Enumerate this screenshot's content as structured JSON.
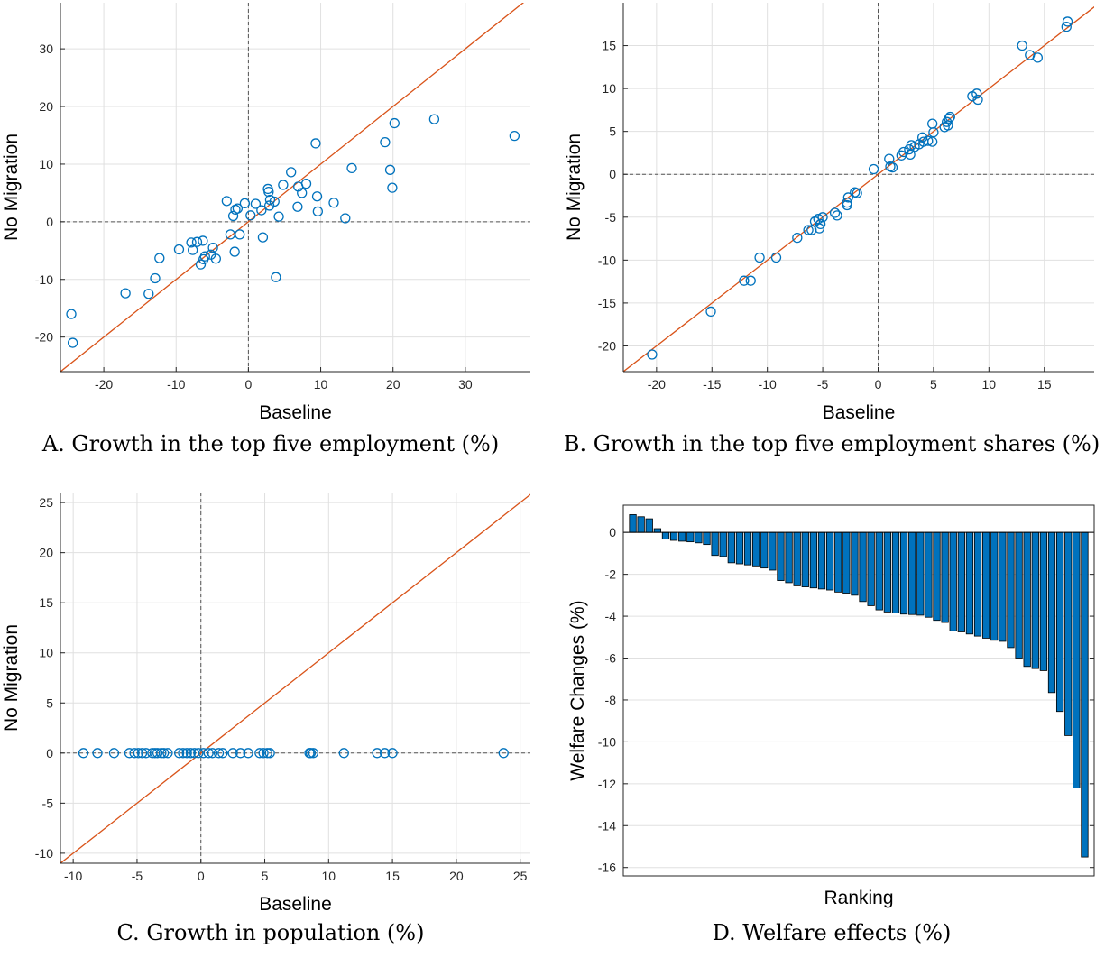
{
  "colors": {
    "marker": "#0072BD",
    "line": "#D95319",
    "bar": "#0072BD",
    "grid": "#e0e0e0",
    "axis": "#262626"
  },
  "chart_data": [
    {
      "id": "A",
      "type": "scatter",
      "caption": "A. Growth in the top five employment (%)",
      "xlabel": "Baseline",
      "ylabel": "No Migration",
      "xlim": [
        -26,
        39
      ],
      "ylim": [
        -26,
        38
      ],
      "xticks": [
        -20,
        -10,
        0,
        10,
        20,
        30
      ],
      "yticks": [
        -20,
        -10,
        0,
        10,
        20,
        30
      ],
      "grid": true,
      "reference_line": "y = x",
      "zero_lines": true,
      "points": [
        [
          -24.5,
          -16
        ],
        [
          -24.3,
          -21
        ],
        [
          -17,
          -12.4
        ],
        [
          -13.8,
          -12.5
        ],
        [
          -12.9,
          -9.8
        ],
        [
          -12.3,
          -6.3
        ],
        [
          -9.6,
          -4.8
        ],
        [
          -7.9,
          -3.6
        ],
        [
          -7.7,
          -4.9
        ],
        [
          -7.1,
          -3.5
        ],
        [
          -6.6,
          -7.4
        ],
        [
          -6.3,
          -3.3
        ],
        [
          -6.2,
          -6.5
        ],
        [
          -6,
          -6
        ],
        [
          -5.2,
          -5.7
        ],
        [
          -4.9,
          -4.5
        ],
        [
          -4.5,
          -6.4
        ],
        [
          -3,
          3.6
        ],
        [
          -2.5,
          -2.2
        ],
        [
          -2.1,
          1
        ],
        [
          -1.9,
          -5.2
        ],
        [
          -1.8,
          2.1
        ],
        [
          -1.5,
          2.3
        ],
        [
          -1.2,
          -2.2
        ],
        [
          -0.5,
          3.2
        ],
        [
          0.3,
          1.1
        ],
        [
          1,
          3.1
        ],
        [
          2,
          -2.7
        ],
        [
          1.8,
          2
        ],
        [
          2.7,
          5.7
        ],
        [
          2.8,
          5.2
        ],
        [
          2.9,
          2.8
        ],
        [
          3,
          3.8
        ],
        [
          3.6,
          3.5
        ],
        [
          3.8,
          -9.6
        ],
        [
          4.2,
          0.9
        ],
        [
          4.8,
          6.4
        ],
        [
          5.9,
          8.6
        ],
        [
          6.8,
          2.6
        ],
        [
          6.9,
          6.1
        ],
        [
          7.4,
          5
        ],
        [
          8,
          6.6
        ],
        [
          9.3,
          13.6
        ],
        [
          9.5,
          4.4
        ],
        [
          9.6,
          1.8
        ],
        [
          11.8,
          3.3
        ],
        [
          13.4,
          0.6
        ],
        [
          14.3,
          9.3
        ],
        [
          18.9,
          13.8
        ],
        [
          19.6,
          9
        ],
        [
          19.9,
          5.9
        ],
        [
          20.2,
          17.1
        ],
        [
          25.7,
          17.8
        ],
        [
          36.8,
          14.9
        ]
      ]
    },
    {
      "id": "B",
      "type": "scatter",
      "caption": "B. Growth in the top five employment shares (%)",
      "xlabel": "Baseline",
      "ylabel": "No Migration",
      "xlim": [
        -23,
        19.5
      ],
      "ylim": [
        -23,
        20
      ],
      "xticks": [
        -20,
        -15,
        -10,
        -5,
        0,
        5,
        10,
        15
      ],
      "yticks": [
        -20,
        -15,
        -10,
        -5,
        0,
        5,
        10,
        15
      ],
      "grid": true,
      "reference_line": "y = x",
      "zero_lines": true,
      "points": [
        [
          -20.4,
          -21
        ],
        [
          -15.1,
          -16
        ],
        [
          -12.1,
          -12.4
        ],
        [
          -11.5,
          -12.4
        ],
        [
          -10.7,
          -9.7
        ],
        [
          -9.2,
          -9.7
        ],
        [
          -7.3,
          -7.4
        ],
        [
          -6.3,
          -6.5
        ],
        [
          -6,
          -6.5
        ],
        [
          -5.7,
          -5.5
        ],
        [
          -5.4,
          -5.2
        ],
        [
          -5.3,
          -6.3
        ],
        [
          -5.2,
          -5.8
        ],
        [
          -5,
          -5
        ],
        [
          -3.9,
          -4.5
        ],
        [
          -3.7,
          -4.8
        ],
        [
          -2.8,
          -3.6
        ],
        [
          -2.8,
          -3.3
        ],
        [
          -2.7,
          -2.7
        ],
        [
          -2.1,
          -2.1
        ],
        [
          -1.9,
          -2.2
        ],
        [
          -0.4,
          0.6
        ],
        [
          1,
          1.8
        ],
        [
          1.1,
          0.9
        ],
        [
          1.3,
          0.8
        ],
        [
          2.1,
          2.2
        ],
        [
          2.3,
          2.6
        ],
        [
          2.8,
          2.9
        ],
        [
          2.9,
          2.3
        ],
        [
          3,
          3.4
        ],
        [
          3.3,
          3.2
        ],
        [
          3.7,
          3.5
        ],
        [
          4,
          4.3
        ],
        [
          4.1,
          3.8
        ],
        [
          4.5,
          3.9
        ],
        [
          4.9,
          5.9
        ],
        [
          4.9,
          3.8
        ],
        [
          5,
          4.9
        ],
        [
          6,
          5.5
        ],
        [
          6.2,
          6.1
        ],
        [
          6.3,
          5.7
        ],
        [
          6.4,
          6.5
        ],
        [
          6.5,
          6.7
        ],
        [
          8.5,
          9.1
        ],
        [
          8.9,
          9.4
        ],
        [
          9,
          8.7
        ],
        [
          13,
          15
        ],
        [
          13.7,
          13.9
        ],
        [
          14.4,
          13.6
        ],
        [
          17,
          17.2
        ],
        [
          17.1,
          17.8
        ]
      ]
    },
    {
      "id": "C",
      "type": "scatter",
      "caption": "C. Growth in population (%)",
      "xlabel": "Baseline",
      "ylabel": "No Migration",
      "xlim": [
        -11,
        25.8
      ],
      "ylim": [
        -11,
        26
      ],
      "xticks": [
        -10,
        -5,
        0,
        5,
        10,
        15,
        20,
        25
      ],
      "yticks": [
        -10,
        -5,
        0,
        5,
        10,
        15,
        20,
        25
      ],
      "grid": true,
      "reference_line": "y = x",
      "zero_lines": true,
      "points": [
        [
          -9.2,
          0
        ],
        [
          -8.1,
          0
        ],
        [
          -6.8,
          0
        ],
        [
          -5.6,
          0
        ],
        [
          -5.2,
          0
        ],
        [
          -4.9,
          0
        ],
        [
          -4.6,
          0
        ],
        [
          -4.3,
          0
        ],
        [
          -3.8,
          0
        ],
        [
          -3.6,
          0
        ],
        [
          -3.4,
          0
        ],
        [
          -3.1,
          0
        ],
        [
          -2.9,
          0
        ],
        [
          -2.6,
          0
        ],
        [
          -1.7,
          0
        ],
        [
          -1.4,
          0
        ],
        [
          -1.1,
          0
        ],
        [
          -0.8,
          0
        ],
        [
          -0.5,
          0
        ],
        [
          -0.2,
          0
        ],
        [
          0.2,
          0
        ],
        [
          0.6,
          0
        ],
        [
          0.9,
          0
        ],
        [
          1.4,
          0
        ],
        [
          1.7,
          0
        ],
        [
          2.5,
          0
        ],
        [
          3.1,
          0
        ],
        [
          3.7,
          0
        ],
        [
          4.6,
          0
        ],
        [
          4.9,
          0
        ],
        [
          5.2,
          0
        ],
        [
          5.4,
          0
        ],
        [
          8.5,
          0
        ],
        [
          8.6,
          0
        ],
        [
          8.8,
          0
        ],
        [
          11.2,
          0
        ],
        [
          13.8,
          0
        ],
        [
          14.4,
          0
        ],
        [
          15,
          0
        ],
        [
          23.7,
          0
        ]
      ]
    },
    {
      "id": "D",
      "type": "bar",
      "caption": "D. Welfare effects (%)",
      "xlabel": "Ranking",
      "ylabel": "Welfare Changes (%)",
      "ylim": [
        -16.4,
        1.3
      ],
      "yticks": [
        0,
        -2,
        -4,
        -6,
        -8,
        -10,
        -12,
        -14,
        -16
      ],
      "grid": true,
      "values": [
        0.85,
        0.75,
        0.65,
        0.18,
        -0.32,
        -0.38,
        -0.42,
        -0.45,
        -0.5,
        -0.58,
        -1.1,
        -1.15,
        -1.45,
        -1.5,
        -1.55,
        -1.6,
        -1.7,
        -1.8,
        -2.3,
        -2.4,
        -2.55,
        -2.6,
        -2.65,
        -2.7,
        -2.75,
        -2.85,
        -2.9,
        -3,
        -3.3,
        -3.5,
        -3.7,
        -3.8,
        -3.85,
        -3.9,
        -3.92,
        -3.95,
        -4.05,
        -4.2,
        -4.3,
        -4.7,
        -4.75,
        -4.85,
        -4.95,
        -5.05,
        -5.15,
        -5.2,
        -5.5,
        -6,
        -6.4,
        -6.5,
        -6.6,
        -7.65,
        -8.55,
        -9.7,
        -12.2,
        -15.5
      ]
    }
  ]
}
